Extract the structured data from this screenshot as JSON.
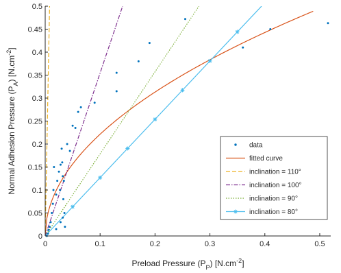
{
  "chart_data": {
    "type": "scatter",
    "title": "",
    "xlabel": "Preload Pressure (P",
    "xlabel_sub": "P",
    "xlabel_tail": ") [N.cm",
    "xlabel_sup": "-2",
    "xlabel_end": "]",
    "ylabel": "Normal Adhesion Pressure (P",
    "ylabel_sub": "A",
    "ylabel_tail": ") [N.cm",
    "ylabel_sup": "-2",
    "ylabel_end": "]",
    "xlim": [
      0,
      0.52
    ],
    "ylim": [
      0,
      0.5
    ],
    "x_ticks": [
      0,
      0.1,
      0.2,
      0.3,
      0.4,
      0.5
    ],
    "x_tick_labels": [
      "0",
      "0.1",
      "0.2",
      "0.3",
      "0.4",
      "0.5"
    ],
    "y_ticks": [
      0,
      0.05,
      0.1,
      0.15,
      0.2,
      0.25,
      0.3,
      0.35,
      0.4,
      0.45,
      0.5
    ],
    "y_tick_labels": [
      "0",
      "0.05",
      "0.1",
      "0.15",
      "0.2",
      "0.25",
      "0.3",
      "0.35",
      "0.4",
      "0.45",
      "0.5"
    ],
    "grid": false,
    "legend_position": "bottom-right",
    "series": [
      {
        "name": "data",
        "kind": "points",
        "color": "#0072bd",
        "points": [
          [
            0.003,
            0.0
          ],
          [
            0.005,
            0.005
          ],
          [
            0.006,
            0.013
          ],
          [
            0.008,
            0.02
          ],
          [
            0.01,
            0.03
          ],
          [
            0.012,
            0.05
          ],
          [
            0.014,
            0.07
          ],
          [
            0.015,
            0.1
          ],
          [
            0.016,
            0.15
          ],
          [
            0.02,
            0.09
          ],
          [
            0.022,
            0.12
          ],
          [
            0.025,
            0.14
          ],
          [
            0.027,
            0.1
          ],
          [
            0.028,
            0.155
          ],
          [
            0.03,
            0.19
          ],
          [
            0.031,
            0.16
          ],
          [
            0.032,
            0.13
          ],
          [
            0.033,
            0.08
          ],
          [
            0.034,
            0.12
          ],
          [
            0.035,
            0.05
          ],
          [
            0.04,
            0.2
          ],
          [
            0.045,
            0.185
          ],
          [
            0.05,
            0.24
          ],
          [
            0.055,
            0.235
          ],
          [
            0.06,
            0.27
          ],
          [
            0.065,
            0.28
          ],
          [
            0.09,
            0.29
          ],
          [
            0.13,
            0.355
          ],
          [
            0.13,
            0.315
          ],
          [
            0.17,
            0.38
          ],
          [
            0.19,
            0.42
          ],
          [
            0.255,
            0.472
          ],
          [
            0.36,
            0.41
          ],
          [
            0.41,
            0.45
          ],
          [
            0.515,
            0.463
          ],
          [
            0.02,
            0.015
          ],
          [
            0.028,
            0.03
          ],
          [
            0.032,
            0.04
          ],
          [
            0.036,
            0.02
          ]
        ]
      },
      {
        "name": "fitted curve",
        "kind": "power",
        "color": "#d95319",
        "coef_a": 0.7,
        "exponent": 0.5,
        "x_range": [
          0,
          0.488
        ]
      },
      {
        "name": "inclination = 110°",
        "kind": "line",
        "style": "dashed",
        "color": "#edb120",
        "points": [
          [
            0.0,
            0.0
          ],
          [
            0.008,
            0.5
          ]
        ]
      },
      {
        "name": "inclination = 100°",
        "kind": "line",
        "style": "dashdot",
        "color": "#7e2f8e",
        "points": [
          [
            0.0,
            0.0
          ],
          [
            0.141,
            0.5
          ]
        ]
      },
      {
        "name": "inclination = 90°",
        "kind": "line",
        "style": "dotted",
        "color": "#77ac30",
        "points": [
          [
            0.0,
            0.0
          ],
          [
            0.28,
            0.5
          ]
        ]
      },
      {
        "name": "inclination = 80°",
        "kind": "line_markers",
        "style": "solid",
        "color": "#4dbeee",
        "points": [
          [
            0.0,
            0.0
          ],
          [
            0.394,
            0.5
          ]
        ],
        "markers_x": [
          0.0,
          0.05,
          0.1,
          0.15,
          0.2,
          0.25,
          0.3,
          0.35
        ]
      }
    ]
  }
}
